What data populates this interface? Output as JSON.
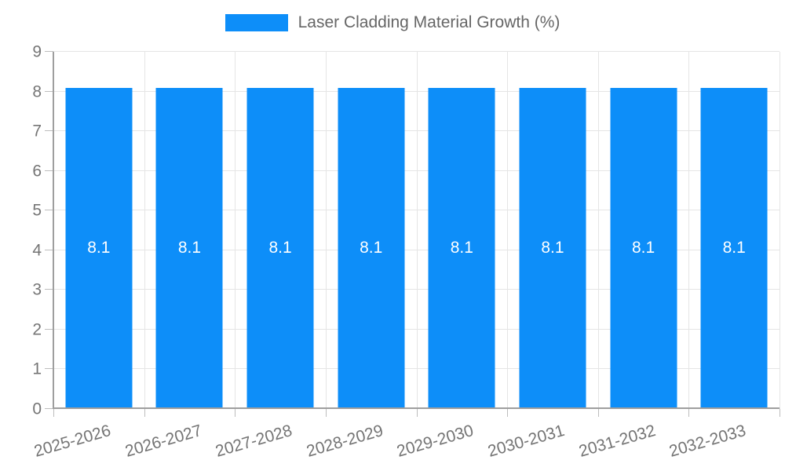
{
  "legend": {
    "position": "top",
    "items": [
      {
        "label": "Laser Cladding Material Growth (%)",
        "color": "#0d8ef9"
      }
    ]
  },
  "chart_data": {
    "type": "bar",
    "title": "",
    "xlabel": "",
    "ylabel": "",
    "categories": [
      "2025-2026",
      "2026-2027",
      "2027-2028",
      "2028-2029",
      "2029-2030",
      "2030-2031",
      "2031-2032",
      "2032-2033"
    ],
    "series": [
      {
        "name": "Laser Cladding Material Growth (%)",
        "color": "#0d8ef9",
        "values": [
          8.1,
          8.1,
          8.1,
          8.1,
          8.1,
          8.1,
          8.1,
          8.1
        ],
        "value_labels": [
          "8.1",
          "8.1",
          "8.1",
          "8.1",
          "8.1",
          "8.1",
          "8.1",
          "8.1"
        ]
      }
    ],
    "ylim": [
      0,
      9
    ],
    "y_ticks": [
      0,
      1,
      2,
      3,
      4,
      5,
      6,
      7,
      8,
      9
    ],
    "grid": true,
    "legend_position": "top",
    "x_tick_rotation_deg": -16
  },
  "colors": {
    "bar": "#0d8ef9",
    "grid_line": "#e5e5e5",
    "axis_line": "#9e9e9e",
    "tick_mark": "#bdbdbd",
    "tick_label_text": "#757575",
    "legend_text": "#666666",
    "bar_value_text": "#ffffff",
    "background": "#ffffff"
  }
}
